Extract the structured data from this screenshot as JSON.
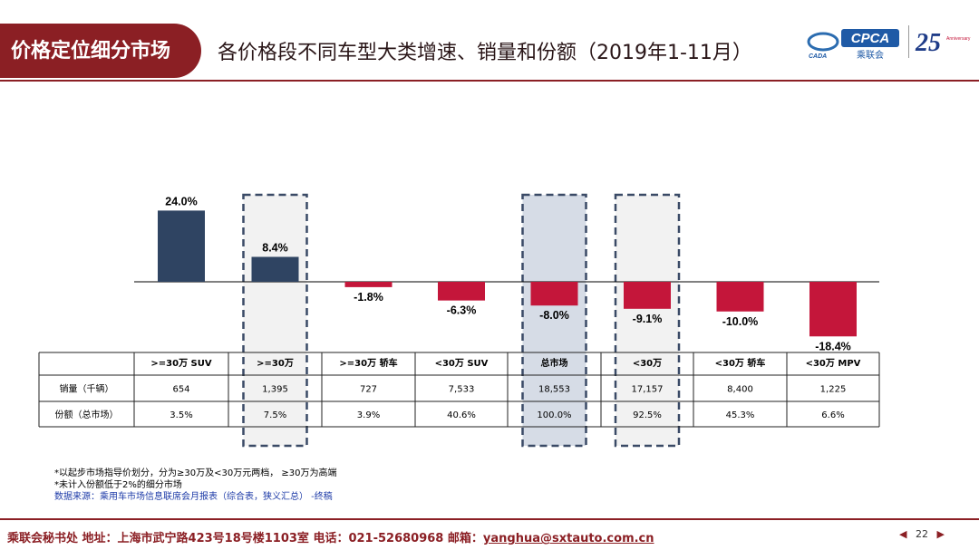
{
  "header": {
    "section_tag": "价格定位细分市场",
    "title": "各价格段不同车型大类增速、销量和份额（2019年1-11月）",
    "logo_cpca": "CPCA",
    "logo_cpca_sub": "乘联会",
    "logo_cada": "CADA",
    "logo_25": "25",
    "logo_25_sub": "Anniversary"
  },
  "chart_data": {
    "type": "bar",
    "categories": [
      ">=30万 SUV",
      ">=30万",
      ">=30万 轿车",
      "<30万 SUV",
      "总市场",
      "<30万",
      "<30万 轿车",
      "<30万 MPV"
    ],
    "category_labels": [
      ">=30万 SUV",
      ">=30万",
      ">=30万 轿车",
      "<30万 SUV",
      "总市场",
      "<30万",
      "<30万 轿车",
      "<30万 MPV"
    ],
    "values": [
      24.0,
      8.4,
      -1.8,
      -6.3,
      -8.0,
      -9.1,
      -10.0,
      -18.4
    ],
    "value_labels": [
      "24.0%",
      "8.4%",
      "-1.8%",
      "-6.3%",
      "-8.0%",
      "-9.1%",
      "-10.0%",
      "-18.4%"
    ],
    "ylim": [
      -20,
      30
    ],
    "colors": {
      "positive": "#2f4462",
      "negative": "#c4163a"
    },
    "highlighted": [
      1,
      4,
      5
    ],
    "table": {
      "rows": [
        {
          "label": "销量（千辆）",
          "values": [
            "654",
            "1,395",
            "727",
            "7,533",
            "18,553",
            "17,157",
            "8,400",
            "1,225"
          ]
        },
        {
          "label": "份额（总市场）",
          "values": [
            "3.5%",
            "7.5%",
            "3.9%",
            "40.6%",
            "100.0%",
            "92.5%",
            "45.3%",
            "6.6%"
          ]
        }
      ]
    }
  },
  "footnotes": {
    "line1": "*以起步市场指导价划分，分为≥30万及<30万元两档，  ≥30万为高端",
    "line2": "*未计入份额低于2%的细分市场",
    "source": "数据来源：乘用车市场信息联席会月报表（综合表，狭义汇总）  -终稿"
  },
  "footer": {
    "address": "乘联会秘书处   地址：上海市武宁路423号18号楼1103室  电话：021-52680968  邮箱：",
    "email": "yanghua@sxtauto.com.cn",
    "page": "22",
    "prev_icon": "triangle-left-icon",
    "next_icon": "triangle-right-icon"
  }
}
